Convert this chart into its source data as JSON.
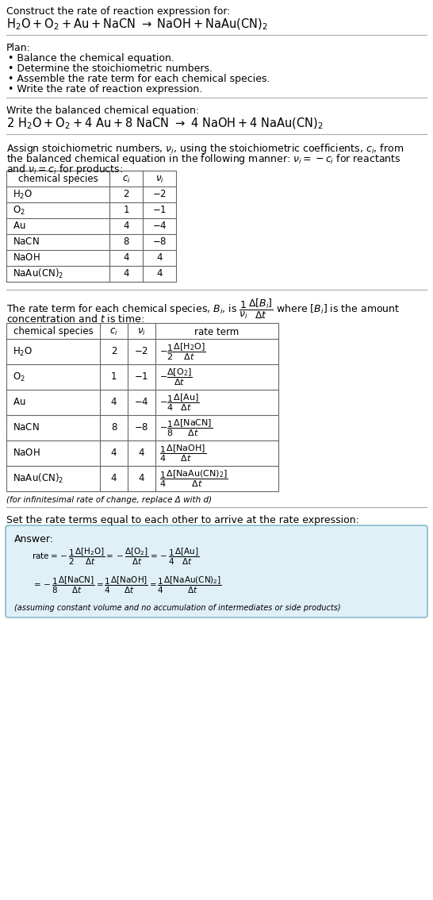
{
  "title_line1": "Construct the rate of reaction expression for:",
  "plan_header": "Plan:",
  "plan_items": [
    "Balance the chemical equation.",
    "Determine the stoichiometric numbers.",
    "Assemble the rate term for each chemical species.",
    "Write the rate of reaction expression."
  ],
  "balanced_header": "Write the balanced chemical equation:",
  "set_rate_text": "Set the rate terms equal to each other to arrive at the rate expression:",
  "answer_label": "Answer:",
  "answer_box_color": "#dff0f7",
  "answer_border_color": "#88bbcc",
  "assuming_note": "(assuming constant volume and no accumulation of intermediates or side products)",
  "infinitesimal_note": "(for infinitesimal rate of change, replace Δ with d)",
  "bg_color": "#ffffff",
  "text_color": "#000000",
  "table_line_color": "#666666",
  "font_size": 9.0
}
